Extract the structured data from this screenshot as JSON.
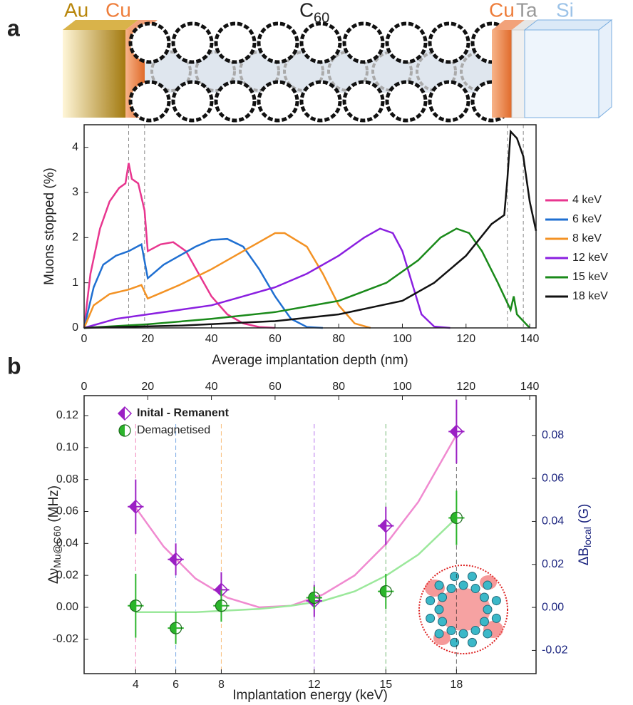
{
  "labels": {
    "panel_a": "a",
    "panel_b": "b"
  },
  "layers": {
    "left_1": "Au",
    "left_2": "Cu",
    "middle": "C",
    "middle_sub": "60",
    "right_1": "Cu",
    "right_2": "Ta",
    "right_3": "Si"
  },
  "chart_data": [
    {
      "type": "line",
      "xlabel": "Average implantation depth (nm)",
      "ylabel": "Muons stopped (%)",
      "xlim": [
        0,
        142
      ],
      "ylim": [
        0,
        4.5
      ],
      "xticks": [
        0,
        20,
        40,
        60,
        80,
        100,
        120,
        140
      ],
      "yticks": [
        0,
        1,
        2,
        3,
        4
      ],
      "reference_lines": [
        14,
        19,
        133,
        138
      ],
      "series": [
        {
          "name": "4 keV",
          "color": "#e8368f",
          "x": [
            0,
            2,
            5,
            8,
            11,
            13,
            14,
            15,
            17,
            19,
            20,
            24,
            28,
            32,
            36,
            40,
            45,
            50,
            55,
            60
          ],
          "values": [
            0,
            1.2,
            2.2,
            2.8,
            3.1,
            3.2,
            3.65,
            3.3,
            3.2,
            2.6,
            1.7,
            1.85,
            1.9,
            1.7,
            1.2,
            0.7,
            0.3,
            0.1,
            0.02,
            0
          ]
        },
        {
          "name": "6 keV",
          "color": "#1f6fd1",
          "x": [
            0,
            3,
            6,
            10,
            14,
            18,
            20,
            25,
            30,
            35,
            40,
            45,
            50,
            55,
            60,
            65,
            70,
            75
          ],
          "values": [
            0,
            0.9,
            1.4,
            1.6,
            1.7,
            1.85,
            1.1,
            1.4,
            1.6,
            1.8,
            1.95,
            1.97,
            1.8,
            1.3,
            0.7,
            0.2,
            0.02,
            0
          ]
        },
        {
          "name": "8 keV",
          "color": "#f39224",
          "x": [
            0,
            3,
            8,
            14,
            18,
            20,
            25,
            30,
            40,
            50,
            55,
            60,
            63,
            70,
            75,
            80,
            85,
            90
          ],
          "values": [
            0,
            0.5,
            0.75,
            0.85,
            0.95,
            0.65,
            0.8,
            0.95,
            1.3,
            1.7,
            1.9,
            2.1,
            2.1,
            1.8,
            1.2,
            0.5,
            0.1,
            0
          ]
        },
        {
          "name": "12 keV",
          "color": "#8a1fe0",
          "x": [
            0,
            10,
            20,
            30,
            40,
            50,
            60,
            70,
            80,
            88,
            93,
            97,
            100,
            103,
            106,
            110,
            115
          ],
          "values": [
            0,
            0.2,
            0.3,
            0.4,
            0.5,
            0.7,
            0.9,
            1.2,
            1.6,
            2.0,
            2.2,
            2.1,
            1.7,
            1.0,
            0.3,
            0.03,
            0
          ]
        },
        {
          "name": "15 keV",
          "color": "#1a8a1a",
          "x": [
            0,
            20,
            40,
            60,
            80,
            95,
            105,
            112,
            117,
            121,
            125,
            130,
            134,
            135,
            136,
            140
          ],
          "values": [
            0,
            0.08,
            0.2,
            0.35,
            0.6,
            1.0,
            1.5,
            2.0,
            2.2,
            2.1,
            1.7,
            1.0,
            0.4,
            0.7,
            0.3,
            0
          ]
        },
        {
          "name": "18 keV",
          "color": "#111111",
          "x": [
            0,
            30,
            60,
            80,
            100,
            110,
            120,
            128,
            132,
            133,
            134,
            136,
            138,
            140,
            142
          ],
          "values": [
            0,
            0.05,
            0.15,
            0.3,
            0.6,
            1.0,
            1.6,
            2.3,
            2.5,
            3.3,
            4.35,
            4.2,
            3.8,
            2.8,
            2.15
          ]
        }
      ]
    },
    {
      "type": "scatter",
      "xlabel": "Implantation energy (keV)",
      "ylabel": "Δν",
      "ylabel_sub": "Mu@C60",
      "ylabel_unit": "(MHz)",
      "y2label": "ΔB",
      "y2label_sub": "local",
      "y2label_unit": "(G)",
      "top_xlim": [
        0,
        142
      ],
      "top_xticks": [
        0,
        20,
        40,
        60,
        80,
        100,
        120,
        140
      ],
      "xticks": [
        {
          "value": 16.2,
          "label": "4"
        },
        {
          "value": 28.8,
          "label": "6"
        },
        {
          "value": 43.1,
          "label": "8"
        },
        {
          "value": 72.3,
          "label": "12"
        },
        {
          "value": 94.8,
          "label": "15"
        },
        {
          "value": 117,
          "label": "18"
        }
      ],
      "ylim": [
        -0.0415,
        0.1325
      ],
      "yticks": [
        -0.02,
        {
          "value": 0,
          "label": "0.00"
        },
        0.02,
        0.04,
        0.06,
        0.08,
        {
          "value": 0.1,
          "label": "0.10"
        },
        0.12
      ],
      "y2lim": [
        -0.0308,
        0.0985
      ],
      "y2ticks": [
        -0.02,
        {
          "value": 0,
          "label": "0.00"
        },
        0.02,
        0.04,
        0.06,
        0.08
      ],
      "series": [
        {
          "name": "Inital - Remanent",
          "color": "#9b1fc4",
          "marker": "diamond",
          "x": [
            16.2,
            28.8,
            43.1,
            72.3,
            94.8,
            117
          ],
          "values": [
            0.063,
            0.03,
            0.011,
            0.004,
            0.051,
            0.11
          ],
          "errors": [
            0.017,
            0.01,
            0.011,
            0.01,
            0.012,
            0.02
          ],
          "x_errors": [
            2.5,
            2.5,
            2.5,
            2.5,
            2.5,
            2.5
          ]
        },
        {
          "name": "Demagnetised",
          "color": "#2bb52b",
          "marker": "circle",
          "x": [
            16.2,
            28.8,
            43.1,
            72.3,
            94.8,
            117
          ],
          "values": [
            0.001,
            -0.013,
            0.001,
            0.006,
            0.01,
            0.056
          ],
          "errors": [
            0.02,
            0.01,
            0.01,
            0.007,
            0.011,
            0.017
          ],
          "x_errors": [
            2.5,
            2.5,
            2.5,
            2.5,
            2.5,
            2.5
          ]
        }
      ],
      "fits": [
        {
          "color": "#f08ad0",
          "x": [
            16,
            25,
            35,
            45,
            55,
            65,
            75,
            85,
            95,
            105,
            117
          ],
          "values": [
            0.063,
            0.038,
            0.018,
            0.006,
            0,
            0.001,
            0.008,
            0.02,
            0.04,
            0.066,
            0.108
          ]
        },
        {
          "color": "#9be89b",
          "x": [
            16,
            25,
            35,
            45,
            55,
            65,
            75,
            85,
            95,
            105,
            117
          ],
          "values": [
            -0.003,
            -0.003,
            -0.003,
            -0.002,
            -0.001,
            0.001,
            0.004,
            0.01,
            0.02,
            0.033,
            0.056
          ]
        }
      ]
    }
  ]
}
